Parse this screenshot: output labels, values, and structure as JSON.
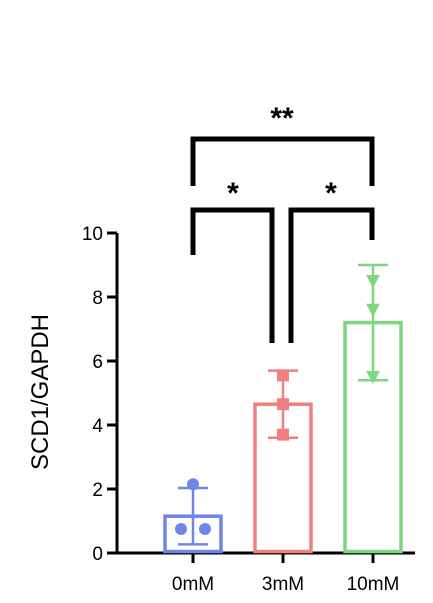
{
  "chart_data": {
    "type": "bar",
    "categories": [
      "0mM",
      "3mM",
      "10mM"
    ],
    "ylabel": "SCD1/GAPDH",
    "ylim": [
      0,
      10
    ],
    "yticks": [
      0,
      2,
      4,
      6,
      8,
      10
    ],
    "grid": false,
    "series": [
      {
        "values": [
          1.15,
          4.65,
          7.2
        ],
        "error": [
          0.88,
          1.05,
          1.8
        ],
        "points": [
          [
            2.15,
            0.75,
            0.75
          ],
          [
            5.55,
            4.65,
            3.7
          ],
          [
            8.5,
            7.6,
            5.5
          ]
        ],
        "colors": [
          "#6f86e8",
          "#f07f7f",
          "#7ed67e"
        ],
        "markers": [
          "circle",
          "square",
          "triangle-down"
        ]
      }
    ],
    "significance": [
      {
        "from": "0mM",
        "to": "3mM",
        "label": "*"
      },
      {
        "from": "3mM",
        "to": "10mM",
        "label": "*"
      },
      {
        "from": "0mM",
        "to": "10mM",
        "label": "**"
      }
    ]
  }
}
